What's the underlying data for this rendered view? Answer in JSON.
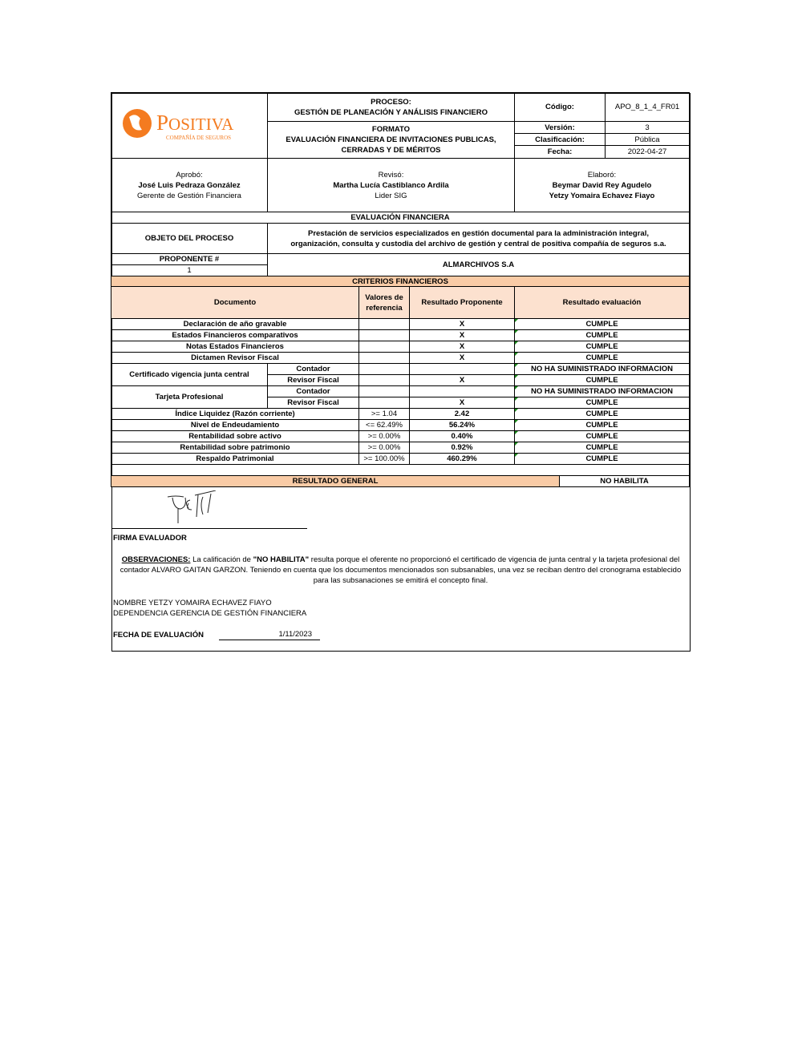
{
  "logo": {
    "brand": "POSITIVA",
    "tagline": "COMPAÑÍA DE SEGUROS",
    "color": "#f47b20"
  },
  "header": {
    "proceso_label": "PROCESO:",
    "proceso": "GESTIÓN DE PLANEACIÓN Y ANÁLISIS FINANCIERO",
    "formato_label": "FORMATO",
    "formato_1": "EVALUACIÓN FINANCIERA DE INVITACIONES PUBLICAS,",
    "formato_2": "CERRADAS Y DE MÉRITOS",
    "codigo_label": "Código:",
    "codigo": "APO_8_1_4_FR01",
    "version_label": "Versión:",
    "version": "3",
    "clasificacion_label": "Clasificación:",
    "clasificacion": "Pública",
    "fecha_label": "Fecha:",
    "fecha": "2022-04-27"
  },
  "signoffs": {
    "aprobo": {
      "label": "Aprobó:",
      "name": "José Luis Pedraza González",
      "role": "Gerente de Gestión Financiera"
    },
    "reviso": {
      "label": "Revisó:",
      "name": "Martha Lucía Castiblanco Ardila",
      "role": "Lider SIG"
    },
    "elaboro": {
      "label": "Elaboró:",
      "name1": "Beymar David Rey Agudelo",
      "name2": "Yetzy Yomaira Echavez Fiayo"
    }
  },
  "section_title": "EVALUACIÓN FINANCIERA",
  "objeto": {
    "label": "OBJETO DEL PROCESO",
    "text1": "Prestación de servicios especializados en gestión documental para la administración integral,",
    "text2": "organización, consulta y custodia del archivo de gestión y central de positiva compañía de seguros s.a."
  },
  "proponente": {
    "label": "PROPONENTE #",
    "number": "1",
    "name": "ALMARCHIVOS S.A"
  },
  "criterios": {
    "title": "CRITERIOS FINANCIEROS",
    "headers": {
      "documento": "Documento",
      "valores": "Valores de referencia",
      "resultado": "Resultado Proponente",
      "evaluacion": "Resultado evaluación"
    },
    "rows": [
      {
        "doc": "Declaración de año gravable",
        "ref": "",
        "res": "X",
        "eval": "CUMPLE"
      },
      {
        "doc": "Estados Financieros comparativos",
        "ref": "",
        "res": "X",
        "eval": "CUMPLE"
      },
      {
        "doc": "Notas Estados Financieros",
        "ref": "",
        "res": "X",
        "eval": "CUMPLE"
      },
      {
        "doc": "Dictamen Revisor Fiscal",
        "ref": "",
        "res": "X",
        "eval": "CUMPLE"
      },
      {
        "group": "Certificado vigencia junta central",
        "sub": "Contador",
        "ref": "",
        "res": "",
        "eval": "NO HA SUMINISTRADO INFORMACION"
      },
      {
        "sub": "Revisor Fiscal",
        "ref": "",
        "res": "X",
        "eval": "CUMPLE"
      },
      {
        "group": "Tarjeta Profesional",
        "sub": "Contador",
        "ref": "",
        "res": "",
        "eval": "NO HA SUMINISTRADO INFORMACION"
      },
      {
        "sub": "Revisor Fiscal",
        "ref": "",
        "res": "X",
        "eval": "CUMPLE"
      },
      {
        "doc": "Índice Liquidez (Razón corriente)",
        "ref": ">=  1.04",
        "res": "2.42",
        "eval": "CUMPLE"
      },
      {
        "doc": "Nivel de Endeudamiento",
        "ref": "<=  62.49%",
        "res": "56.24%",
        "eval": "CUMPLE"
      },
      {
        "doc": "Rentabilidad sobre activo",
        "ref": ">=  0.00%",
        "res": "0.40%",
        "eval": "CUMPLE"
      },
      {
        "doc": "Rentabilidad sobre patrimonio",
        "ref": ">=  0.00%",
        "res": "0.92%",
        "eval": "CUMPLE"
      },
      {
        "doc": "Respaldo Patrimonial",
        "ref": ">=  100.00%",
        "res": "460.29%",
        "eval": "CUMPLE"
      }
    ]
  },
  "resultado_general": {
    "label": "RESULTADO GENERAL",
    "value": "NO HABILITA"
  },
  "firma_label": "FIRMA EVALUADOR",
  "observaciones": {
    "label": "OBSERVACIONES:",
    "pre": " La calificación de ",
    "quote": "\"NO HABILITA\"",
    "post": " resulta porque el oferente no proporcionó el certificado de vigencia de junta central y la tarjeta profesional del contador ALVARO GAITAN GARZON. Teniendo en cuenta que los documentos mencionados son subsanables, una vez se reciban dentro del cronograma establecido para las subsanaciones se emitirá el concepto final."
  },
  "evaluador": {
    "nombre": "NOMBRE YETZY YOMAIRA ECHAVEZ FIAYO",
    "dependencia": "DEPENDENCIA GERENCIA DE GESTIÓN FINANCIERA"
  },
  "fecha_evaluacion": {
    "label": "FECHA DE EVALUACIÓN",
    "value": "1/11/2023"
  }
}
